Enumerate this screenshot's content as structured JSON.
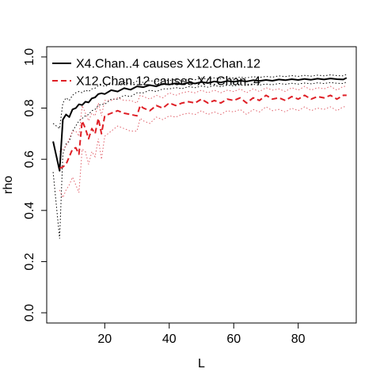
{
  "chart_data": {
    "type": "line",
    "title": "",
    "xlabel": "L",
    "ylabel": "rho",
    "xlim": [
      2,
      98
    ],
    "ylim": [
      -0.04,
      1.04
    ],
    "xticks": [
      20,
      40,
      60,
      80
    ],
    "yticks": [
      0.0,
      0.2,
      0.4,
      0.6,
      0.8,
      1.0
    ],
    "xtick_labels": [
      "20",
      "40",
      "60",
      "80"
    ],
    "ytick_labels": [
      "0.0",
      "0.2",
      "0.4",
      "0.6",
      "0.8",
      "1.0"
    ],
    "grid": false,
    "legend_position": "top-left",
    "series": [
      {
        "name": "X4.Chan..4 causes X12.Chan.12",
        "color": "#000000",
        "style": "solid",
        "x": [
          4,
          6,
          7,
          8,
          9,
          10,
          11,
          12,
          13,
          14,
          15,
          16,
          17,
          18,
          19,
          20,
          22,
          24,
          26,
          28,
          30,
          32,
          34,
          36,
          38,
          40,
          42,
          44,
          46,
          48,
          50,
          52,
          54,
          56,
          58,
          60,
          62,
          64,
          66,
          68,
          70,
          72,
          74,
          76,
          78,
          80,
          82,
          84,
          86,
          88,
          90,
          92,
          94,
          95
        ],
        "values": [
          0.67,
          0.555,
          0.755,
          0.775,
          0.765,
          0.795,
          0.8,
          0.815,
          0.812,
          0.825,
          0.822,
          0.838,
          0.842,
          0.855,
          0.858,
          0.855,
          0.87,
          0.865,
          0.878,
          0.872,
          0.885,
          0.882,
          0.89,
          0.885,
          0.895,
          0.892,
          0.897,
          0.893,
          0.9,
          0.896,
          0.902,
          0.898,
          0.904,
          0.9,
          0.906,
          0.903,
          0.907,
          0.904,
          0.909,
          0.906,
          0.91,
          0.907,
          0.912,
          0.909,
          0.913,
          0.91,
          0.914,
          0.911,
          0.915,
          0.912,
          0.916,
          0.913,
          0.912,
          0.918
        ],
        "upper": [
          0.74,
          0.72,
          0.82,
          0.84,
          0.83,
          0.85,
          0.86,
          0.865,
          0.86,
          0.87,
          0.865,
          0.875,
          0.878,
          0.888,
          0.89,
          0.885,
          0.895,
          0.89,
          0.9,
          0.895,
          0.905,
          0.9,
          0.908,
          0.903,
          0.91,
          0.908,
          0.912,
          0.908,
          0.915,
          0.911,
          0.917,
          0.913,
          0.918,
          0.915,
          0.92,
          0.917,
          0.921,
          0.918,
          0.923,
          0.92,
          0.924,
          0.921,
          0.926,
          0.923,
          0.927,
          0.924,
          0.928,
          0.925,
          0.929,
          0.926,
          0.93,
          0.927,
          0.926,
          0.932
        ],
        "lower": [
          0.55,
          0.29,
          0.62,
          0.66,
          0.67,
          0.71,
          0.73,
          0.75,
          0.76,
          0.77,
          0.775,
          0.79,
          0.795,
          0.81,
          0.815,
          0.815,
          0.835,
          0.835,
          0.85,
          0.845,
          0.86,
          0.86,
          0.87,
          0.865,
          0.875,
          0.875,
          0.88,
          0.876,
          0.884,
          0.88,
          0.886,
          0.882,
          0.888,
          0.884,
          0.89,
          0.887,
          0.891,
          0.888,
          0.893,
          0.89,
          0.894,
          0.891,
          0.896,
          0.893,
          0.897,
          0.894,
          0.898,
          0.895,
          0.899,
          0.896,
          0.9,
          0.897,
          0.896,
          0.902
        ]
      },
      {
        "name": "X12.Chan.12 causes X4.Chan..4",
        "color": "#df1f26",
        "style": "dashed",
        "x": [
          6,
          7,
          8,
          9,
          10,
          11,
          12,
          13,
          14,
          15,
          16,
          17,
          18,
          19,
          20,
          22,
          24,
          26,
          28,
          30,
          31,
          32,
          34,
          36,
          38,
          40,
          42,
          44,
          46,
          48,
          50,
          52,
          54,
          56,
          58,
          60,
          62,
          64,
          66,
          68,
          70,
          72,
          74,
          76,
          78,
          80,
          82,
          84,
          86,
          88,
          90,
          92,
          94,
          95
        ],
        "values": [
          0.565,
          0.57,
          0.58,
          0.61,
          0.64,
          0.645,
          0.62,
          0.75,
          0.72,
          0.68,
          0.72,
          0.7,
          0.76,
          0.7,
          0.77,
          0.78,
          0.79,
          0.78,
          0.775,
          0.77,
          0.81,
          0.8,
          0.79,
          0.81,
          0.8,
          0.82,
          0.81,
          0.82,
          0.825,
          0.82,
          0.835,
          0.82,
          0.83,
          0.82,
          0.835,
          0.83,
          0.84,
          0.82,
          0.84,
          0.83,
          0.85,
          0.835,
          0.84,
          0.83,
          0.845,
          0.835,
          0.85,
          0.835,
          0.845,
          0.84,
          0.85,
          0.835,
          0.85,
          0.85
        ],
        "upper": [
          0.63,
          0.64,
          0.65,
          0.68,
          0.71,
          0.71,
          0.69,
          0.81,
          0.78,
          0.75,
          0.78,
          0.77,
          0.82,
          0.77,
          0.83,
          0.83,
          0.84,
          0.83,
          0.83,
          0.82,
          0.85,
          0.845,
          0.835,
          0.85,
          0.84,
          0.86,
          0.85,
          0.86,
          0.865,
          0.86,
          0.87,
          0.86,
          0.87,
          0.86,
          0.87,
          0.865,
          0.875,
          0.86,
          0.875,
          0.865,
          0.88,
          0.87,
          0.875,
          0.865,
          0.88,
          0.87,
          0.885,
          0.87,
          0.88,
          0.875,
          0.885,
          0.87,
          0.885,
          0.885
        ],
        "lower": [
          0.48,
          0.45,
          0.48,
          0.5,
          0.53,
          0.5,
          0.47,
          0.64,
          0.63,
          0.58,
          0.63,
          0.61,
          0.68,
          0.6,
          0.69,
          0.71,
          0.73,
          0.72,
          0.71,
          0.71,
          0.76,
          0.75,
          0.74,
          0.765,
          0.755,
          0.77,
          0.765,
          0.775,
          0.78,
          0.775,
          0.79,
          0.775,
          0.785,
          0.775,
          0.79,
          0.785,
          0.795,
          0.775,
          0.795,
          0.785,
          0.805,
          0.79,
          0.795,
          0.785,
          0.8,
          0.79,
          0.805,
          0.79,
          0.8,
          0.795,
          0.805,
          0.79,
          0.805,
          0.805
        ]
      }
    ]
  }
}
